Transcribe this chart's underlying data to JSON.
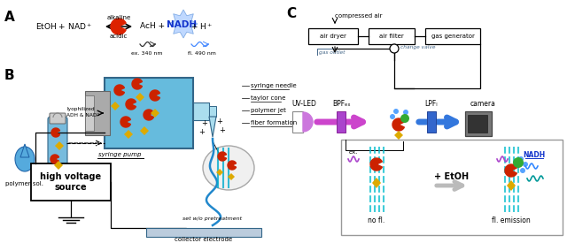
{
  "bg_color": "#ffffff",
  "label_A": "A",
  "label_B": "B",
  "label_C": "C",
  "alkaline": "alkaline",
  "acidic": "acidic",
  "ex_label": "ex. 340 nm",
  "fl_label": "fl. 490 nm",
  "lyophilized": "lyophilized\nADH & NAD⁺",
  "polymer_sol": "polymer sol.",
  "syringe_pump": "syringe pump",
  "high_voltage": "high voltage\nsource",
  "syringe_needle": "syringe needle",
  "taylor_cone": "taylor cone",
  "polymer_jet": "polymer jet",
  "fiber_formation": "fiber formation",
  "set_wo": "set w/o pretreatment",
  "collector": "collector electrode",
  "compressed_air": "compressed air",
  "air_dryer": "air dryer",
  "air_filter": "air filter",
  "gas_generator": "gas generator",
  "gas_outlet": "gas outlet",
  "change_valve": "change valve",
  "uv_led": "UV-LED",
  "bpf": "BPFₑₓ",
  "lpf": "LPFₗ",
  "camera": "camera",
  "ex_small": "ex.",
  "plus_etoh": "+ EtOH",
  "nadh_label": "NADH",
  "no_fl": "no fl.",
  "fl_emission": "fl. emission"
}
